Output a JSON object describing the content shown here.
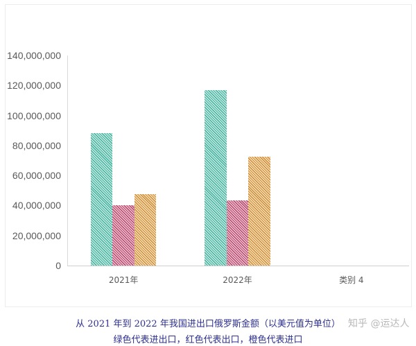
{
  "chart_data": {
    "type": "bar",
    "title": "",
    "xlabel": "",
    "ylabel": "",
    "categories": [
      "2021年",
      "2022年",
      "类别 4"
    ],
    "series": [
      {
        "name": "进出口",
        "color": "#3fae9b",
        "values": [
          88300000,
          116900000,
          null
        ]
      },
      {
        "name": "出口",
        "color": "#b0476b",
        "values": [
          40200000,
          43400000,
          null
        ]
      },
      {
        "name": "进口",
        "color": "#c98a3a",
        "values": [
          47600000,
          72600000,
          null
        ]
      }
    ],
    "ylim": [
      0,
      140000000
    ],
    "yticks": [
      "0",
      "20,000,000",
      "40,000,000",
      "60,000,000",
      "80,000,000",
      "100,000,000",
      "120,000,000",
      "140,000,000"
    ],
    "grid": false,
    "legend": "none",
    "pattern": "diagonal-hatch"
  },
  "caption": {
    "line1": "从 2021 年到 2022 年我国进出口俄罗斯金额（以美元值为单位）",
    "line2": "绿色代表进出口，红色代表出口，橙色代表进口"
  },
  "watermark": "知乎 @运达人"
}
